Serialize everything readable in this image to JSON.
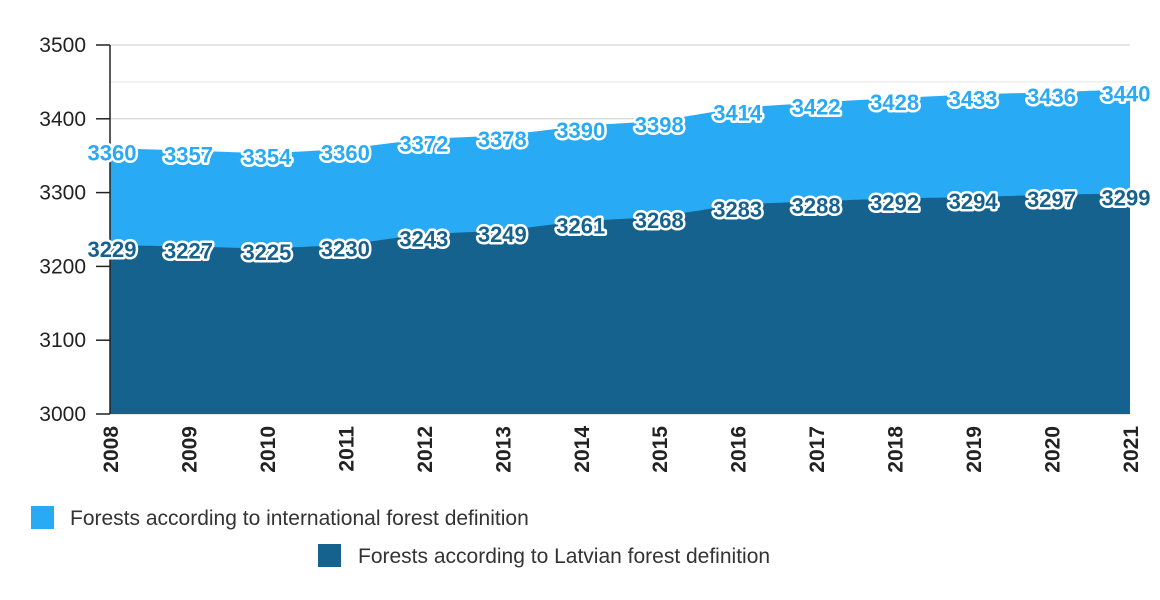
{
  "chart_data": {
    "type": "area",
    "x": [
      "2008",
      "2009",
      "2010",
      "2011",
      "2012",
      "2013",
      "2014",
      "2015",
      "2016",
      "2017",
      "2018",
      "2019",
      "2020",
      "2021"
    ],
    "ylim": [
      3000,
      3500
    ],
    "yticks": [
      3000,
      3100,
      3200,
      3300,
      3400,
      3500
    ],
    "grid": true,
    "legend_position": "bottom",
    "series": [
      {
        "name": "Forests according to international forest definition",
        "color": "#29aaf5",
        "values": [
          3360,
          3357,
          3354,
          3360,
          3372,
          3378,
          3390,
          3398,
          3414,
          3422,
          3428,
          3433,
          3436,
          3440
        ]
      },
      {
        "name": "Forests according to Latvian forest definition",
        "color": "#16628e",
        "values": [
          3229,
          3227,
          3225,
          3230,
          3243,
          3249,
          3261,
          3268,
          3283,
          3288,
          3292,
          3294,
          3297,
          3299
        ]
      }
    ]
  }
}
